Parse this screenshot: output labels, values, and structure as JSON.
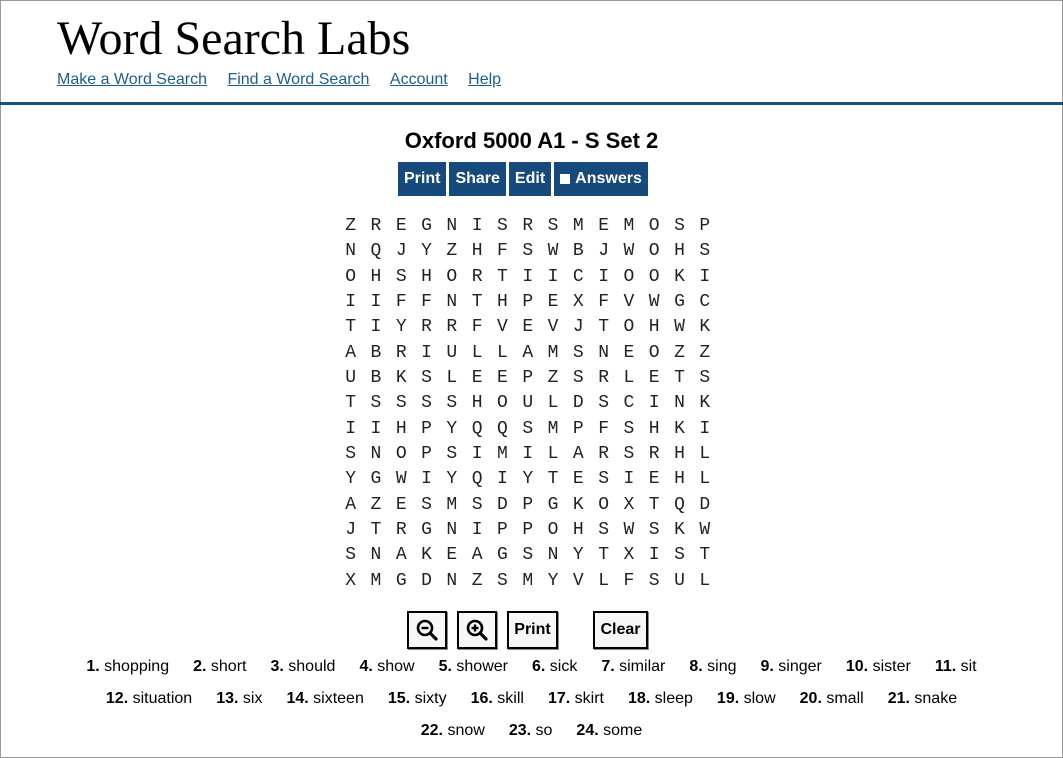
{
  "site": {
    "title": "Word Search Labs",
    "nav": [
      "Make a Word Search",
      "Find a Word Search",
      "Account",
      "Help"
    ]
  },
  "puzzle": {
    "title": "Oxford 5000 A1 - S Set 2",
    "toolbar": {
      "print": "Print",
      "share": "Share",
      "edit": "Edit",
      "answers": "Answers"
    },
    "grid": [
      "ZREGNISRSMEMOSP",
      "NQJYZHFSWBJWOHS",
      "OHSHORTIICIOOKI",
      "IIFFNTHPEXFVWGC",
      "TIYRRFVEVJTOHWK",
      "ABRIULLAMSNEOZZ",
      "UBKSLEEPZSRLETS",
      "TSSSSHOULDSCINK",
      "IIHPYQQSMPFSHKI",
      "SNOPSIMILARSRHL",
      "YGWIYQIYTESIEHL",
      "AZESMSDPGKOXTQD",
      "JTRGNIPPOHSWSKW",
      "SNAKEAGSNYTXIST",
      "XMGDNZSMYVLFSUL"
    ],
    "controls": {
      "zoom_out_icon": "zoom-out-icon",
      "zoom_in_icon": "zoom-in-icon",
      "print": "Print",
      "clear": "Clear"
    },
    "word_rows": [
      [
        {
          "num": "1.",
          "word": "shopping"
        },
        {
          "num": "2.",
          "word": "short"
        },
        {
          "num": "3.",
          "word": "should"
        },
        {
          "num": "4.",
          "word": "show"
        },
        {
          "num": "5.",
          "word": "shower"
        },
        {
          "num": "6.",
          "word": "sick"
        },
        {
          "num": "7.",
          "word": "similar"
        },
        {
          "num": "8.",
          "word": "sing"
        },
        {
          "num": "9.",
          "word": "singer"
        },
        {
          "num": "10.",
          "word": "sister"
        },
        {
          "num": "11.",
          "word": "sit"
        }
      ],
      [
        {
          "num": "12.",
          "word": "situation"
        },
        {
          "num": "13.",
          "word": "six"
        },
        {
          "num": "14.",
          "word": "sixteen"
        },
        {
          "num": "15.",
          "word": "sixty"
        },
        {
          "num": "16.",
          "word": "skill"
        },
        {
          "num": "17.",
          "word": "skirt"
        },
        {
          "num": "18.",
          "word": "sleep"
        },
        {
          "num": "19.",
          "word": "slow"
        },
        {
          "num": "20.",
          "word": "small"
        },
        {
          "num": "21.",
          "word": "snake"
        }
      ],
      [
        {
          "num": "22.",
          "word": "snow"
        },
        {
          "num": "23.",
          "word": "so"
        },
        {
          "num": "24.",
          "word": "some"
        }
      ]
    ]
  }
}
